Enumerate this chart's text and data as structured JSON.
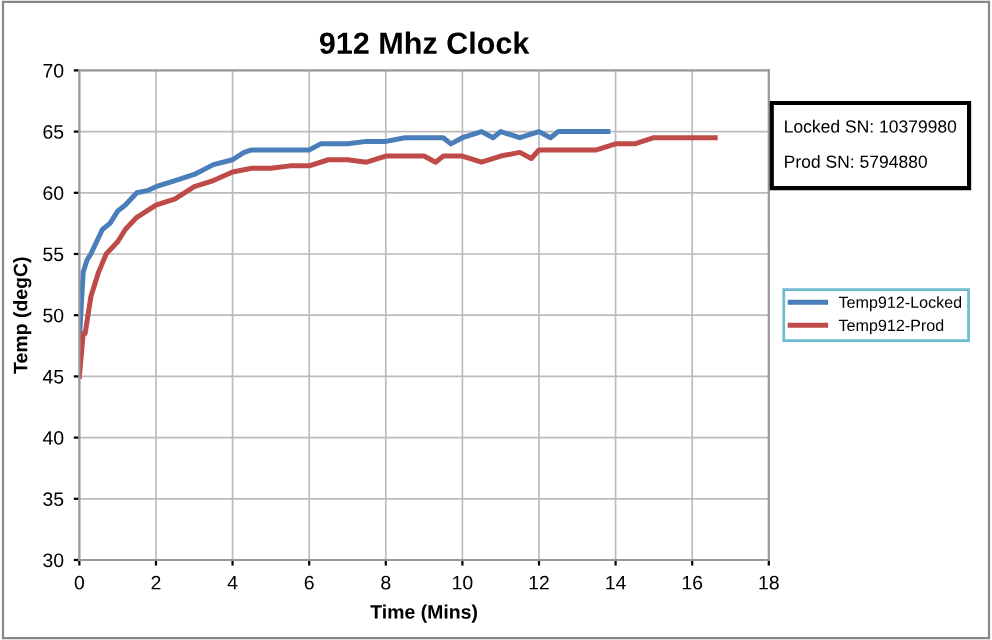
{
  "chart_data": {
    "type": "line",
    "title": "912 Mhz Clock",
    "xlabel": "Time (Mins)",
    "ylabel": "Temp (degC)",
    "xlim": [
      0,
      18
    ],
    "xticks": [
      0,
      2,
      4,
      6,
      8,
      10,
      12,
      14,
      16,
      18
    ],
    "ylim": [
      30,
      70
    ],
    "yticks": [
      30,
      35,
      40,
      45,
      50,
      55,
      60,
      65,
      70
    ],
    "grid": true,
    "legend": "right",
    "marker": "none",
    "line_style": "solid",
    "annotations": [
      "Locked SN: 10379980",
      "Prod SN: 5794880"
    ],
    "series": [
      {
        "name": "Temp912-Locked",
        "color": "#4a7ebb",
        "x": [
          0,
          0.1,
          0.2,
          0.3,
          0.45,
          0.6,
          0.8,
          1.0,
          1.2,
          1.5,
          1.8,
          2.0,
          2.5,
          3.0,
          3.5,
          4.0,
          4.3,
          4.5,
          5.0,
          5.5,
          6.0,
          6.3,
          6.5,
          7.0,
          7.5,
          8.0,
          8.5,
          9.0,
          9.5,
          9.7,
          10.0,
          10.5,
          10.8,
          11.0,
          11.5,
          12.0,
          12.3,
          12.5,
          13.0,
          13.5,
          13.8
        ],
        "values": [
          48,
          53.5,
          54.5,
          55,
          56,
          57,
          57.5,
          58.5,
          59,
          60,
          60.2,
          60.5,
          61,
          61.5,
          62.3,
          62.7,
          63.3,
          63.5,
          63.5,
          63.5,
          63.5,
          64,
          64,
          64,
          64.2,
          64.2,
          64.5,
          64.5,
          64.5,
          64,
          64.5,
          65,
          64.5,
          65,
          64.5,
          65,
          64.5,
          65,
          65,
          65,
          65
        ]
      },
      {
        "name": "Temp912-Prod",
        "color": "#be4b48",
        "x": [
          0,
          0.1,
          0.15,
          0.3,
          0.5,
          0.7,
          1.0,
          1.2,
          1.5,
          2.0,
          2.5,
          3.0,
          3.5,
          4.0,
          4.5,
          5.0,
          5.5,
          6.0,
          6.5,
          7.0,
          7.5,
          8.0,
          8.5,
          9.0,
          9.3,
          9.5,
          10.0,
          10.5,
          11.0,
          11.5,
          11.8,
          12.0,
          12.5,
          13.0,
          13.5,
          14.0,
          14.5,
          15.0,
          15.5,
          16.0,
          16.6
        ],
        "values": [
          45,
          48.5,
          48.5,
          51.5,
          53.5,
          55,
          56,
          57,
          58,
          59,
          59.5,
          60.5,
          61,
          61.7,
          62,
          62,
          62.2,
          62.2,
          62.7,
          62.7,
          62.5,
          63,
          63,
          63,
          62.5,
          63,
          63,
          62.5,
          63,
          63.3,
          62.8,
          63.5,
          63.5,
          63.5,
          63.5,
          64,
          64,
          64.5,
          64.5,
          64.5,
          64.5
        ]
      }
    ]
  }
}
